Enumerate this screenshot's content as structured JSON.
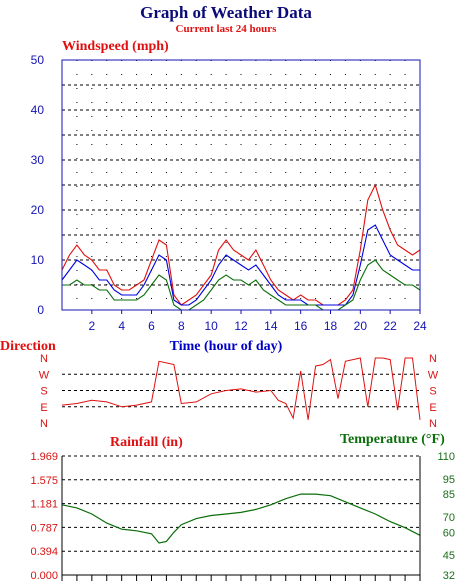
{
  "header": {
    "title": "Graph of Weather Data",
    "subtitle": "Current last 24 hours"
  },
  "colors": {
    "title": "#0a0a78",
    "red": "#e01010",
    "blue": "#0000e0",
    "green": "#0a6e0a",
    "axis_blue": "#1414b4",
    "grid": "#000000"
  },
  "chart_data": [
    {
      "type": "line",
      "title": "Windspeed (mph)",
      "xlabel": "Time (hour of day)",
      "ylabel": "",
      "xlim": [
        0,
        24
      ],
      "ylim": [
        0,
        50
      ],
      "x_ticks": [
        "2",
        "4",
        "6",
        "8",
        "10",
        "12",
        "14",
        "16",
        "18",
        "20",
        "22",
        "24"
      ],
      "y_ticks": [
        "0",
        "10",
        "20",
        "30",
        "40",
        "50"
      ],
      "grid": true,
      "x": [
        0,
        0.5,
        1,
        1.5,
        2,
        2.5,
        3,
        3.5,
        4,
        4.5,
        5,
        5.5,
        6,
        6.5,
        7,
        7.5,
        8,
        8.5,
        9,
        9.5,
        10,
        10.5,
        11,
        11.5,
        12,
        12.5,
        13,
        13.5,
        14,
        14.5,
        15,
        15.5,
        16,
        16.5,
        17,
        17.5,
        18,
        18.5,
        19,
        19.5,
        20,
        20.5,
        21,
        21.5,
        22,
        22.5,
        23,
        23.5,
        24
      ],
      "series": [
        {
          "color": "#e01010",
          "values": [
            8,
            11,
            13,
            11,
            10,
            8,
            8,
            5,
            4,
            4,
            5,
            6,
            10,
            14,
            13,
            3,
            1,
            2,
            3,
            5,
            7,
            12,
            14,
            12,
            11,
            10,
            12,
            9,
            6,
            4,
            3,
            2,
            3,
            2,
            2,
            1,
            1,
            1,
            2,
            4,
            12,
            22,
            25,
            20,
            16,
            13,
            12,
            11,
            12
          ]
        },
        {
          "color": "#0000e0",
          "values": [
            6,
            8,
            10,
            9,
            8,
            6,
            6,
            4,
            3,
            3,
            3,
            5,
            8,
            11,
            10,
            2,
            1,
            1,
            2,
            4,
            6,
            9,
            11,
            10,
            9,
            8,
            9,
            7,
            5,
            3,
            2,
            2,
            2,
            1,
            1,
            1,
            1,
            1,
            1,
            3,
            9,
            16,
            17,
            14,
            11,
            10,
            9,
            8,
            8
          ]
        },
        {
          "color": "#0a6e0a",
          "values": [
            5,
            5,
            6,
            5,
            5,
            4,
            4,
            2,
            2,
            2,
            2,
            3,
            5,
            7,
            6,
            1,
            0,
            0,
            1,
            2,
            4,
            6,
            7,
            6,
            6,
            5,
            6,
            4,
            3,
            2,
            1,
            1,
            1,
            1,
            1,
            0,
            0,
            0,
            1,
            2,
            6,
            9,
            10,
            8,
            7,
            6,
            5,
            5,
            4
          ]
        }
      ]
    },
    {
      "type": "line",
      "title": "Direction",
      "ylabel": "Direction",
      "xlim": [
        0,
        24
      ],
      "y_categories": [
        "N",
        "W",
        "S",
        "E",
        "N"
      ],
      "grid": true,
      "x": [
        0,
        1,
        2,
        3,
        4,
        5,
        6,
        6.5,
        7,
        7.5,
        8,
        9,
        10,
        11,
        12,
        13,
        14,
        14.5,
        15,
        15.5,
        16,
        16.5,
        17,
        17.5,
        18,
        18.5,
        19,
        19.5,
        20,
        20.5,
        21,
        21.5,
        22,
        22.5,
        23,
        23.5,
        24
      ],
      "series": [
        {
          "color": "#e01010",
          "values": [
            1.1,
            1.2,
            1.4,
            1.3,
            1.0,
            1.1,
            1.3,
            3.8,
            3.7,
            3.6,
            1.2,
            1.3,
            1.8,
            2.0,
            2.1,
            1.9,
            2.0,
            1.4,
            1.2,
            0.3,
            3.2,
            0.2,
            3.5,
            3.6,
            3.9,
            1.5,
            3.8,
            3.9,
            4.0,
            1.0,
            4.0,
            4.0,
            3.9,
            0.8,
            4.0,
            4.0,
            0.2
          ]
        }
      ]
    },
    {
      "type": "line",
      "title": "Rainfall (in)",
      "xlim": [
        0,
        24
      ],
      "ylim": [
        0,
        1.969
      ],
      "y_ticks": [
        "0.000",
        "0.394",
        "0.787",
        "1.181",
        "1.575",
        "1.969"
      ],
      "grid": true,
      "series": [
        {
          "name": "Rainfall (in)",
          "color": "#e01010",
          "values": []
        }
      ]
    },
    {
      "type": "line",
      "title": "Temperature (°F)",
      "xlim": [
        0,
        24
      ],
      "ylim": [
        32,
        110
      ],
      "y_ticks": [
        "32",
        "45",
        "60",
        "70",
        "85",
        "95",
        "110"
      ],
      "x": [
        0,
        1,
        2,
        3,
        4,
        5,
        6,
        6.5,
        7,
        7.5,
        8,
        9,
        10,
        11,
        12,
        13,
        14,
        15,
        16,
        17,
        18,
        19,
        20,
        21,
        22,
        23,
        24
      ],
      "series": [
        {
          "color": "#0a6e0a",
          "values": [
            78,
            76,
            72,
            66,
            62,
            61,
            59,
            53,
            54,
            60,
            65,
            69,
            71,
            72,
            73,
            75,
            78,
            82,
            85,
            85,
            84,
            80,
            76,
            72,
            67,
            63,
            58
          ]
        }
      ]
    }
  ]
}
